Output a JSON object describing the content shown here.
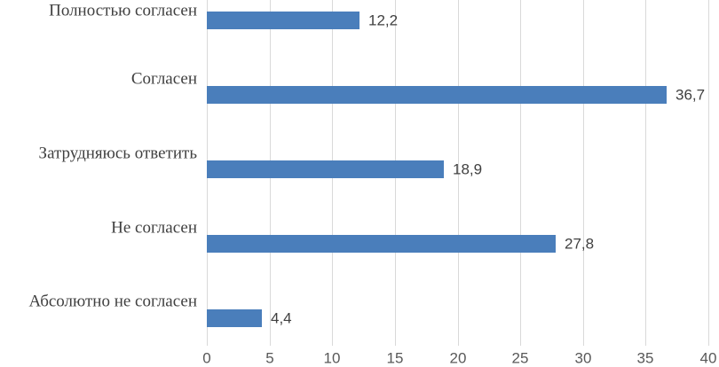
{
  "chart_data": {
    "type": "bar",
    "orientation": "horizontal",
    "title": "",
    "xlabel": "",
    "ylabel": "",
    "categories": [
      "Полностью согласен",
      "Согласен",
      "Затрудняюсь ответить",
      "Не согласен",
      "Абсолютно не согласен"
    ],
    "values": [
      12.2,
      36.7,
      18.9,
      27.8,
      4.4
    ],
    "value_labels": [
      "12,2",
      "36,7",
      "18,9",
      "27,8",
      "4,4"
    ],
    "x_ticks": [
      0,
      5,
      10,
      15,
      20,
      25,
      30,
      35,
      40
    ],
    "x_tick_labels": [
      "0",
      "5",
      "10",
      "15",
      "20",
      "25",
      "30",
      "35",
      "40"
    ],
    "xlim": [
      0,
      40
    ],
    "grid": true,
    "legend": false,
    "decimal_separator": ",",
    "colors": {
      "bar": "#4A7EBB",
      "gridline": "#D9D9D9",
      "category_label": "#404040",
      "value_label": "#404040",
      "axis_label": "#595959",
      "background": "#FFFFFF"
    }
  }
}
